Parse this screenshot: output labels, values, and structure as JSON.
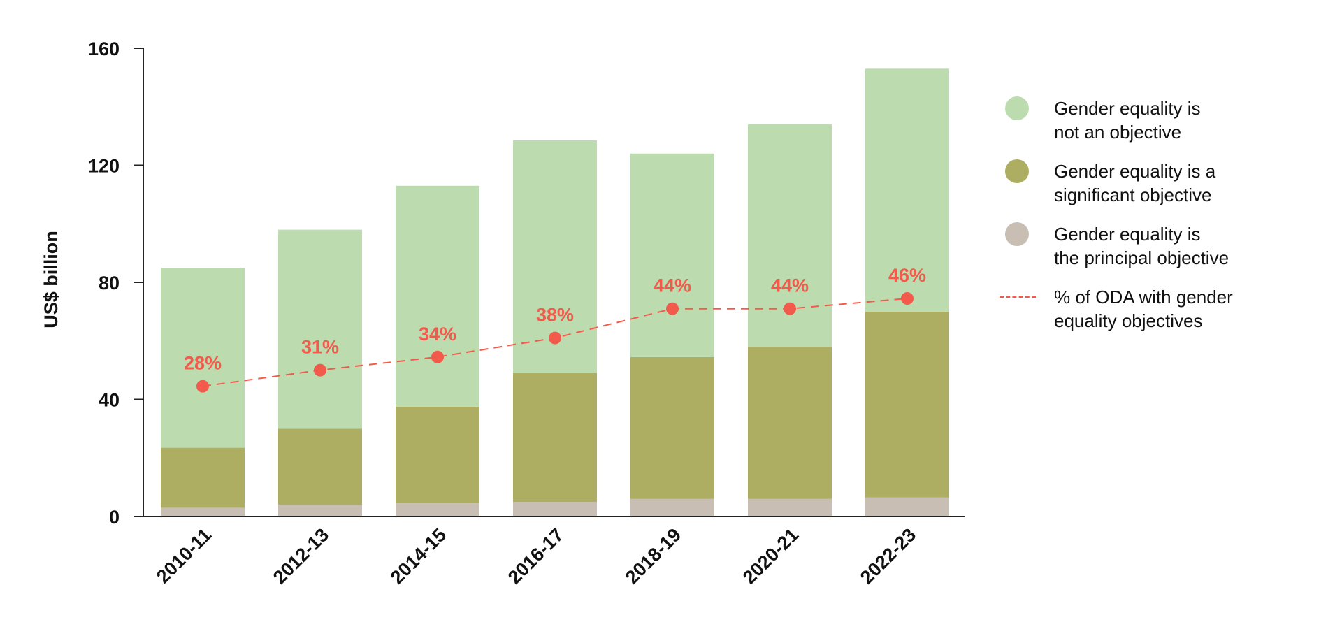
{
  "chart_data": {
    "type": "bar",
    "stacked": true,
    "categories": [
      "2010-11",
      "2012-13",
      "2014-15",
      "2016-17",
      "2018-19",
      "2020-21",
      "2022-23"
    ],
    "series": [
      {
        "name": "Gender equality is the principal objective",
        "color": "#c8beb4",
        "values": [
          3,
          4,
          4.5,
          5,
          6,
          6,
          6.5
        ]
      },
      {
        "name": "Gender equality is a significant objective",
        "color": "#adae62",
        "values": [
          20.5,
          26,
          33,
          44,
          48.5,
          52,
          63.5
        ]
      },
      {
        "name": "Gender equality is not an objective",
        "color": "#bcdcb0",
        "values": [
          61.5,
          68,
          75.5,
          79.5,
          69.5,
          76,
          83
        ]
      }
    ],
    "line_series": {
      "name": "% of ODA with gender equality objectives",
      "color": "#f25b4c",
      "values": [
        28,
        31,
        34,
        38,
        44,
        44,
        46
      ],
      "labels": [
        "28%",
        "31%",
        "34%",
        "38%",
        "44%",
        "44%",
        "46%"
      ],
      "marker_y": [
        44.5,
        50,
        54.5,
        61,
        71,
        71,
        74.5
      ]
    },
    "ylabel": "US$ billion",
    "ylim": [
      0,
      160
    ],
    "yticks": [
      0,
      40,
      80,
      120,
      160
    ],
    "grid": false,
    "legend_position": "right"
  },
  "legend": {
    "items": [
      {
        "text": "Gender equality is\nnot an objective",
        "color": "#bcdcb0",
        "type": "dot"
      },
      {
        "text": "Gender equality is a\nsignificant objective",
        "color": "#adae62",
        "type": "dot"
      },
      {
        "text": "Gender equality is\nthe principal objective",
        "color": "#c8beb4",
        "type": "dot"
      },
      {
        "text": "% of ODA with gender\nequality objectives",
        "color": "#f25b4c",
        "type": "dash"
      }
    ]
  }
}
